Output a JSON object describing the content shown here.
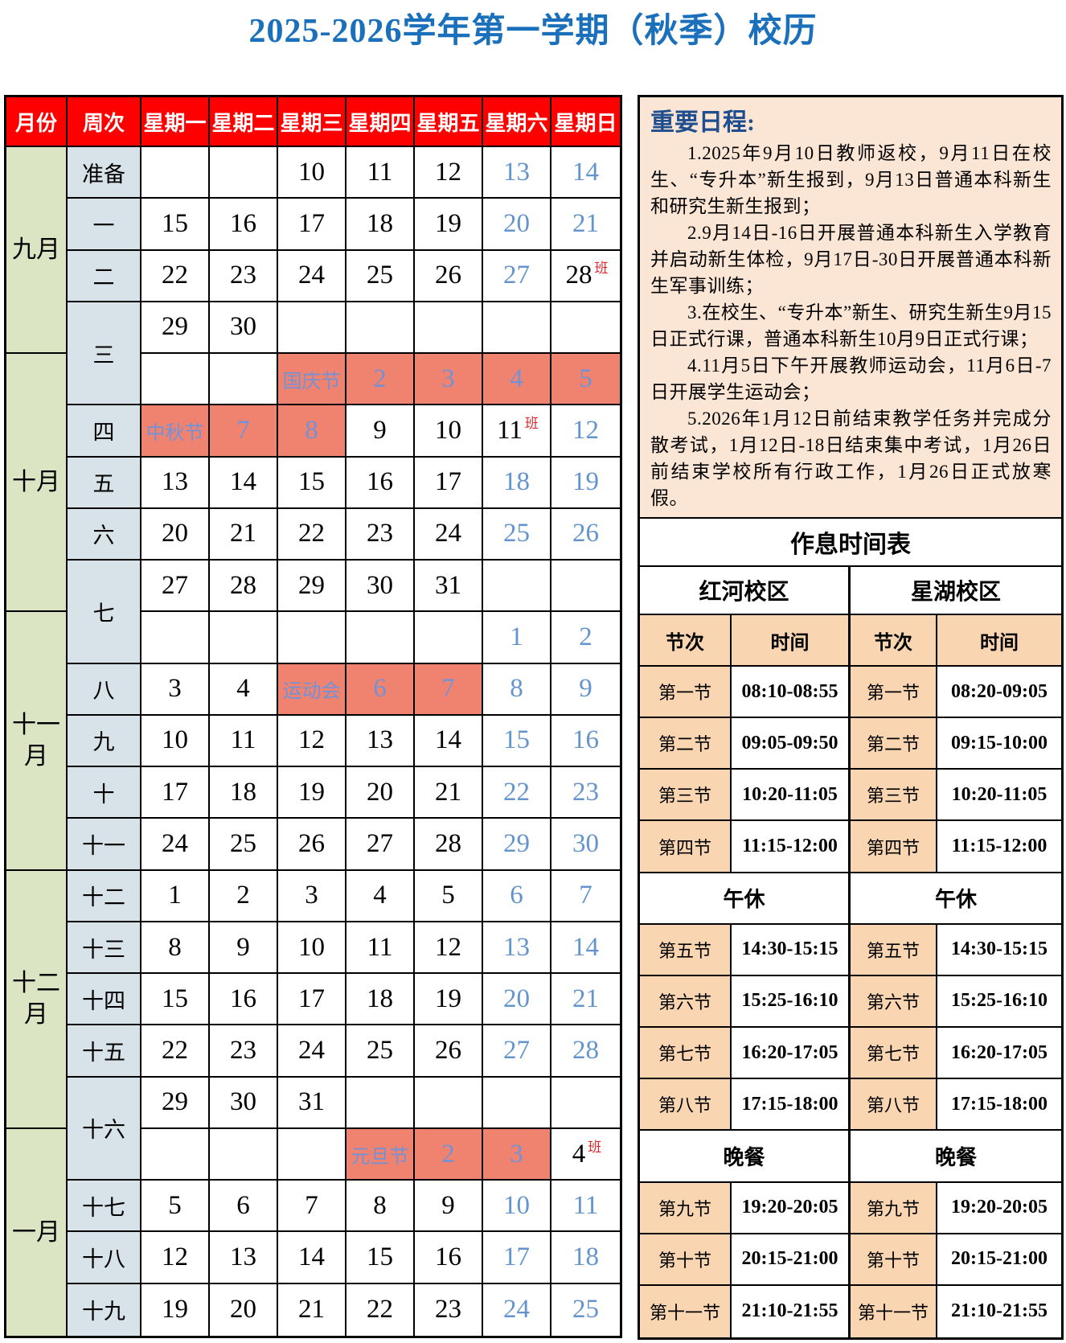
{
  "page_title": "2025-2026学年第一学期（秋季）校历",
  "colors": {
    "title_blue": "#1a70ba",
    "header_red": "#fe0000",
    "month_green": "#dbe5c3",
    "week_blue": "#d8e2e9",
    "holiday_salmon": "#ef8370",
    "weekend_text_blue": "#6494ce",
    "holiday_text_blue": "#7292d8",
    "notes_heading_blue": "#1f4e8f",
    "notes_bg_peach": "#fbe5d4",
    "slot_peach": "#f9d5b1",
    "work_badge_red": "#e0262a"
  },
  "calendar": {
    "column_headers": [
      "月份",
      "周次",
      "星期一",
      "星期二",
      "星期三",
      "星期四",
      "星期五",
      "星期六",
      "星期日"
    ],
    "months": [
      {
        "label": "九月",
        "rows": 4
      },
      {
        "label": "十一月",
        "rows": 5
      },
      {
        "label": "十二月",
        "rows": 5
      },
      {
        "label": "一月",
        "rows": 4
      }
    ],
    "months_full": [
      {
        "label": "九月",
        "rows": 4
      },
      {
        "label": "十月",
        "rows": 5
      },
      {
        "label": "十一月",
        "rows": 5
      },
      {
        "label": "十二月",
        "rows": 5
      },
      {
        "label": "一月",
        "rows": 4
      }
    ],
    "weeks": [
      {
        "label": "准备",
        "rows": 1
      },
      {
        "label": "一",
        "rows": 1
      },
      {
        "label": "二",
        "rows": 1
      },
      {
        "label": "三",
        "rows": 2
      },
      {
        "label": "四",
        "rows": 1
      },
      {
        "label": "五",
        "rows": 1
      },
      {
        "label": "六",
        "rows": 1
      },
      {
        "label": "七",
        "rows": 2
      },
      {
        "label": "八",
        "rows": 1
      },
      {
        "label": "九",
        "rows": 1
      },
      {
        "label": "十",
        "rows": 1
      },
      {
        "label": "十一",
        "rows": 1
      },
      {
        "label": "十二",
        "rows": 1
      },
      {
        "label": "十三",
        "rows": 1
      },
      {
        "label": "十四",
        "rows": 1
      },
      {
        "label": "十五",
        "rows": 1
      },
      {
        "label": "十六",
        "rows": 2
      },
      {
        "label": "十七",
        "rows": 1
      },
      {
        "label": "十八",
        "rows": 1
      },
      {
        "label": "十九",
        "rows": 1
      }
    ],
    "work_badge": "班",
    "rows": [
      [
        "",
        "",
        "10",
        "11",
        "12",
        "13|w",
        "14|w"
      ],
      [
        "15",
        "16",
        "17",
        "18",
        "19",
        "20|w",
        "21|w"
      ],
      [
        "22",
        "23",
        "24",
        "25",
        "26",
        "27|w",
        "28|b"
      ],
      [
        "29",
        "30",
        "",
        "",
        "",
        "",
        ""
      ],
      [
        "",
        "",
        "国庆节|h",
        "2|h",
        "3|h",
        "4|h",
        "5|h"
      ],
      [
        "中秋节|h",
        "7|h",
        "8|h",
        "9",
        "10",
        "11|b",
        "12|w"
      ],
      [
        "13",
        "14",
        "15",
        "16",
        "17",
        "18|w",
        "19|w"
      ],
      [
        "20",
        "21",
        "22",
        "23",
        "24",
        "25|w",
        "26|w"
      ],
      [
        "27",
        "28",
        "29",
        "30",
        "31",
        "",
        ""
      ],
      [
        "",
        "",
        "",
        "",
        "",
        "1|w",
        "2|w"
      ],
      [
        "3",
        "4",
        "运动会|h",
        "6|h",
        "7|h",
        "8|w",
        "9|w"
      ],
      [
        "10",
        "11",
        "12",
        "13",
        "14",
        "15|w",
        "16|w"
      ],
      [
        "17",
        "18",
        "19",
        "20",
        "21",
        "22|w",
        "23|w"
      ],
      [
        "24",
        "25",
        "26",
        "27",
        "28",
        "29|w",
        "30|w"
      ],
      [
        "1",
        "2",
        "3",
        "4",
        "5",
        "6|w",
        "7|w"
      ],
      [
        "8",
        "9",
        "10",
        "11",
        "12",
        "13|w",
        "14|w"
      ],
      [
        "15",
        "16",
        "17",
        "18",
        "19",
        "20|w",
        "21|w"
      ],
      [
        "22",
        "23",
        "24",
        "25",
        "26",
        "27|w",
        "28|w"
      ],
      [
        "29",
        "30",
        "31",
        "",
        "",
        "",
        ""
      ],
      [
        "",
        "",
        "",
        "元旦节|h",
        "2|h",
        "3|h",
        "4|b"
      ],
      [
        "5",
        "6",
        "7",
        "8",
        "9",
        "10|w",
        "11|w"
      ],
      [
        "12",
        "13",
        "14",
        "15",
        "16",
        "17|w",
        "18|w"
      ],
      [
        "19",
        "20",
        "21",
        "22",
        "23",
        "24|w",
        "25|w"
      ]
    ]
  },
  "notes": {
    "heading": "重要日程:",
    "items": [
      "1.2025年9月10日教师返校，9月11日在校生、“专升本”新生报到，9月13日普通本科新生和研究生新生报到；",
      "2.9月14日-16日开展普通本科新生入学教育并启动新生体检，9月17日-30日开展普通本科新生军事训练；",
      "3.在校生、“专升本”新生、研究生新生9月15日正式行课，普通本科新生10月9日正式行课；",
      "4.11月5日下午开展教师运动会，11月6日-7日开展学生运动会；",
      "5.2026年1月12日前结束教学任务并完成分散考试，1月12日-18日结束集中考试，1月26日前结束学校所有行政工作，1月26日正式放寒假。"
    ]
  },
  "timetable": {
    "title": "作息时间表",
    "campuses": [
      {
        "name": "红河校区"
      },
      {
        "name": "星湖校区"
      }
    ],
    "column_headers": [
      "节次",
      "时间",
      "节次",
      "时间"
    ],
    "rows": [
      [
        "第一节",
        "08:10-08:55",
        "第一节",
        "08:20-09:05"
      ],
      [
        "第二节",
        "09:05-09:50",
        "第二节",
        "09:15-10:00"
      ],
      [
        "第三节",
        "10:20-11:05",
        "第三节",
        "10:20-11:05"
      ],
      [
        "第四节",
        "11:15-12:00",
        "第四节",
        "11:15-12:00"
      ],
      {
        "span": [
          "午休",
          "午休"
        ]
      },
      [
        "第五节",
        "14:30-15:15",
        "第五节",
        "14:30-15:15"
      ],
      [
        "第六节",
        "15:25-16:10",
        "第六节",
        "15:25-16:10"
      ],
      [
        "第七节",
        "16:20-17:05",
        "第七节",
        "16:20-17:05"
      ],
      [
        "第八节",
        "17:15-18:00",
        "第八节",
        "17:15-18:00"
      ],
      {
        "span": [
          "晚餐",
          "晚餐"
        ]
      },
      [
        "第九节",
        "19:20-20:05",
        "第九节",
        "19:20-20:05"
      ],
      [
        "第十节",
        "20:15-21:00",
        "第十节",
        "20:15-21:00"
      ],
      [
        "第十一节",
        "21:10-21:55",
        "第十一节",
        "21:10-21:55"
      ]
    ]
  }
}
